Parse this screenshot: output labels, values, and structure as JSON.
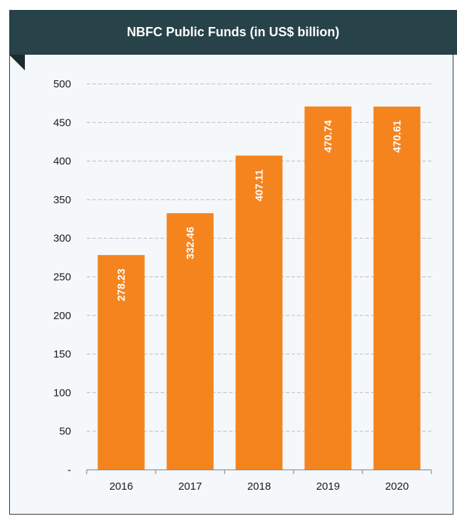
{
  "chart_data": {
    "type": "bar",
    "title": "NBFC Public Funds (in US$ billion)",
    "categories": [
      "2016",
      "2017",
      "2018",
      "2019",
      "2020"
    ],
    "values": [
      278.23,
      332.46,
      407.11,
      470.74,
      470.61
    ],
    "data_labels": [
      "278.23",
      "332.46",
      "407.11",
      "470.74",
      "470.61"
    ],
    "ylim": [
      0,
      500
    ],
    "yticks": [
      0,
      50,
      100,
      150,
      200,
      250,
      300,
      350,
      400,
      450,
      500
    ],
    "ytick_labels": [
      "-",
      "50",
      "100",
      "150",
      "200",
      "250",
      "300",
      "350",
      "400",
      "450",
      "500"
    ],
    "xlabel": "",
    "ylabel": "",
    "grid": true,
    "grid_style": "dashed-horizontal",
    "bar_color": "#f5841f",
    "legend": "none"
  },
  "colors": {
    "banner": "#274248",
    "bar": "#f5841f",
    "grid": "#b8bcc0",
    "axis": "#7a7a7a"
  }
}
